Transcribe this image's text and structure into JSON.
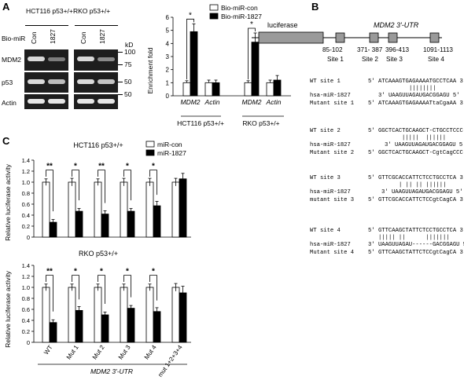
{
  "panels": {
    "a": "A",
    "b": "B",
    "c": "C"
  },
  "panel_a": {
    "cell_lines": [
      "HCT116 p53+/+",
      "RKO p53+/+"
    ],
    "bio_mir_label": "Bio-miR",
    "lanes": [
      "Con",
      "1827",
      "Con",
      "1827"
    ],
    "proteins": [
      "MDM2",
      "p53",
      "Actin"
    ],
    "kd_label": "kD",
    "markers": [
      "100",
      "75",
      "50",
      "50"
    ]
  },
  "chart_data": [
    {
      "id": "enrichment",
      "type": "bar",
      "ylabel": "Enrichment fold",
      "ylim": [
        0,
        6
      ],
      "yticks": [
        0,
        1,
        2,
        3,
        4,
        5,
        6
      ],
      "groups": [
        "HCT116 p53+/+",
        "RKO p53+/+"
      ],
      "categories": [
        "MDM2",
        "Actin",
        "MDM2",
        "Actin"
      ],
      "series": [
        {
          "name": "Bio-miR-con",
          "color": "#ffffff",
          "values": [
            1.0,
            1.0,
            1.0,
            1.0
          ],
          "errors": [
            0.15,
            0.2,
            0.15,
            0.2
          ]
        },
        {
          "name": "Bio-miR-1827",
          "color": "#000000",
          "values": [
            4.9,
            1.0,
            4.1,
            1.2
          ],
          "errors": [
            0.6,
            0.2,
            0.7,
            0.35
          ]
        }
      ],
      "significance": [
        "*",
        "",
        "*",
        ""
      ]
    },
    {
      "id": "luc-hct",
      "type": "bar",
      "title": "HCT116 p53+/+",
      "ylim": [
        0,
        1.4
      ],
      "yticks": [
        "0",
        "0.2",
        "0.4",
        "0.6",
        "0.8",
        "1.0",
        "1.2",
        "1.4"
      ],
      "categories": [
        "WT",
        "Mut 1",
        "Mut 2",
        "Mut 3",
        "Mut 4",
        "mut 1+2+3+4"
      ],
      "series": [
        {
          "name": "miR-con",
          "color": "#ffffff",
          "values": [
            1.0,
            1.0,
            1.0,
            1.0,
            1.0,
            1.0
          ],
          "errors": [
            0.06,
            0.07,
            0.06,
            0.07,
            0.07,
            0.07
          ]
        },
        {
          "name": "miR-1827",
          "color": "#000000",
          "values": [
            0.27,
            0.47,
            0.42,
            0.47,
            0.57,
            1.06
          ],
          "errors": [
            0.05,
            0.05,
            0.06,
            0.05,
            0.08,
            0.1
          ]
        }
      ],
      "significance": [
        "**",
        "*",
        "**",
        "*",
        "*",
        ""
      ]
    },
    {
      "id": "luc-rko",
      "type": "bar",
      "title": "RKO p53+/+",
      "ylim": [
        0,
        1.4
      ],
      "yticks": [
        "0",
        "0.2",
        "0.4",
        "0.6",
        "0.8",
        "1.0",
        "1.2",
        "1.4"
      ],
      "categories": [
        "WT",
        "Mut 1",
        "Mut 2",
        "Mut 3",
        "Mut 4",
        "mut 1+2+3+4"
      ],
      "series": [
        {
          "name": "miR-con",
          "color": "#ffffff",
          "values": [
            1.0,
            1.0,
            1.0,
            1.0,
            1.0,
            1.0
          ],
          "errors": [
            0.06,
            0.06,
            0.06,
            0.06,
            0.06,
            0.07
          ]
        },
        {
          "name": "miR-1827",
          "color": "#000000",
          "values": [
            0.36,
            0.58,
            0.5,
            0.62,
            0.56,
            0.9
          ],
          "errors": [
            0.05,
            0.07,
            0.05,
            0.05,
            0.07,
            0.12
          ]
        }
      ],
      "significance": [
        "**",
        "*",
        "*",
        "*",
        "*",
        ""
      ]
    }
  ],
  "panel_c": {
    "ylabel": "Relative luciferase activity",
    "xlabel": "MDM2 3'-UTR"
  },
  "panel_b": {
    "luciferase_label": "luciferase",
    "utr_label": "MDM2 3'-UTR",
    "site_ranges": [
      "85-102",
      "371- 387",
      "396-413",
      "1091-1113"
    ],
    "site_names": [
      "Site 1",
      "Site 2",
      "Site 3",
      "Site 4"
    ],
    "alignments": [
      {
        "label1": "WT site 1",
        "seq1": "5' ATCAAAGTGAGAAAATGCCTCAA 3'",
        "pairs": "||||||||",
        "label2": "hsa-miR-1827",
        "seq2": "3' UAAGUUAGAUGACGGAGU 5'",
        "label3": "Mutant site 1",
        "seq3": "5' ATCAAAGTGAGAAAATtaCgaAA 3'"
      },
      {
        "label1": "WT site 2",
        "seq1": "5' GGCTCACTGCAAGCT-CTGCCTCCC 3'",
        "pairs": "|||||  ||||||",
        "label2": "hsa-miR-1827",
        "seq2": "3' UAAGUUAGAUGACGGAGU 5'",
        "label3": "Mutant site 2",
        "seq3": "5' GGCTCACTGCAAGCT-CgtCagCCC 3'"
      },
      {
        "label1": "WT site 3",
        "seq1": "5' GTTCGCACCATTCTCCTGCCTCA 3'",
        "pairs": "| || || ||||||",
        "label2": "hsa-miR-1827",
        "seq2": "3' UAAGUUAGAUGACGGAGU 5'",
        "label3": "mutant site 3",
        "seq3": "5' GTTCGCACCATTCTCCgtCagCA 3'"
      },
      {
        "label1": "WT site 4",
        "seq1": "5' GTTCAAGCTATTCTCCTGCCTCA 3'",
        "pairs": "||||| ||      |||||||",
        "label2": "hsa-miR-1827",
        "seq2": "3' UAAGUUAGAU------GACGGAGU 5'",
        "label3": "Mutant site 4",
        "seq3": "5' GTTCAAGCTATTCTCCgtCagCA 3'"
      }
    ]
  }
}
